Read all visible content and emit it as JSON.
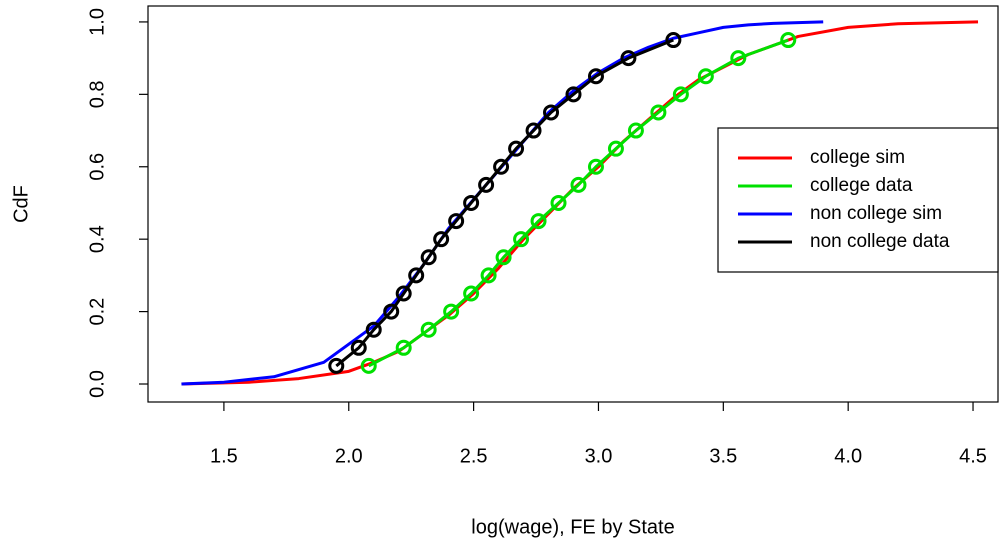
{
  "chart_data": {
    "type": "line",
    "xlabel": "log(wage), FE by State",
    "ylabel": "CdF",
    "xlim": [
      1.196,
      4.6
    ],
    "ylim": [
      -0.0497,
      1.044
    ],
    "xticks": [
      1.5,
      {
        "value": 2,
        "label": "2.0"
      },
      2.5,
      {
        "value": 3,
        "label": "3.0"
      },
      3.5,
      {
        "value": 4,
        "label": "4.0"
      },
      4.5
    ],
    "yticks": [
      {
        "value": 0,
        "label": "0.0"
      },
      0.2,
      0.4,
      0.6,
      0.8,
      {
        "value": 1,
        "label": "1.0"
      }
    ],
    "legend": "right",
    "series": [
      {
        "name": "college sim",
        "color": "#ff0000",
        "markers": false,
        "x": [
          1.33,
          1.6,
          1.8,
          2.0,
          2.1,
          2.2,
          2.3,
          2.4,
          2.5,
          2.6,
          2.7,
          2.8,
          2.9,
          3.0,
          3.1,
          3.2,
          3.3,
          3.4,
          3.6,
          3.8,
          4.0,
          4.2,
          4.52
        ],
        "values": [
          0,
          0.005,
          0.015,
          0.035,
          0.06,
          0.09,
          0.14,
          0.19,
          0.25,
          0.32,
          0.4,
          0.47,
          0.54,
          0.6,
          0.67,
          0.73,
          0.79,
          0.84,
          0.91,
          0.96,
          0.985,
          0.995,
          1.0
        ]
      },
      {
        "name": "college data",
        "color": "#00e000",
        "markers": true,
        "x": [
          2.08,
          2.22,
          2.32,
          2.41,
          2.49,
          2.56,
          2.62,
          2.69,
          2.76,
          2.84,
          2.92,
          2.99,
          3.07,
          3.15,
          3.24,
          3.33,
          3.43,
          3.56,
          3.76
        ],
        "values": [
          0.05,
          0.1,
          0.15,
          0.2,
          0.25,
          0.3,
          0.35,
          0.4,
          0.45,
          0.5,
          0.55,
          0.6,
          0.65,
          0.7,
          0.75,
          0.8,
          0.85,
          0.9,
          0.95
        ]
      },
      {
        "name": "non college sim",
        "color": "#0000ff",
        "markers": false,
        "x": [
          1.33,
          1.5,
          1.7,
          1.9,
          2.0,
          2.1,
          2.2,
          2.3,
          2.4,
          2.5,
          2.6,
          2.7,
          2.8,
          2.9,
          3.0,
          3.1,
          3.2,
          3.3,
          3.4,
          3.5,
          3.6,
          3.7,
          3.8,
          3.9
        ],
        "values": [
          0,
          0.005,
          0.02,
          0.06,
          0.11,
          0.16,
          0.24,
          0.33,
          0.43,
          0.51,
          0.59,
          0.67,
          0.75,
          0.81,
          0.86,
          0.9,
          0.93,
          0.955,
          0.97,
          0.985,
          0.992,
          0.996,
          0.998,
          1.0
        ]
      },
      {
        "name": "non college data",
        "color": "#000000",
        "markers": true,
        "x": [
          1.95,
          2.04,
          2.1,
          2.17,
          2.22,
          2.27,
          2.32,
          2.37,
          2.43,
          2.49,
          2.55,
          2.61,
          2.67,
          2.74,
          2.81,
          2.9,
          2.99,
          3.12,
          3.3
        ],
        "values": [
          0.05,
          0.1,
          0.15,
          0.2,
          0.25,
          0.3,
          0.35,
          0.4,
          0.45,
          0.5,
          0.55,
          0.6,
          0.65,
          0.7,
          0.75,
          0.8,
          0.85,
          0.9,
          0.95
        ]
      }
    ]
  }
}
